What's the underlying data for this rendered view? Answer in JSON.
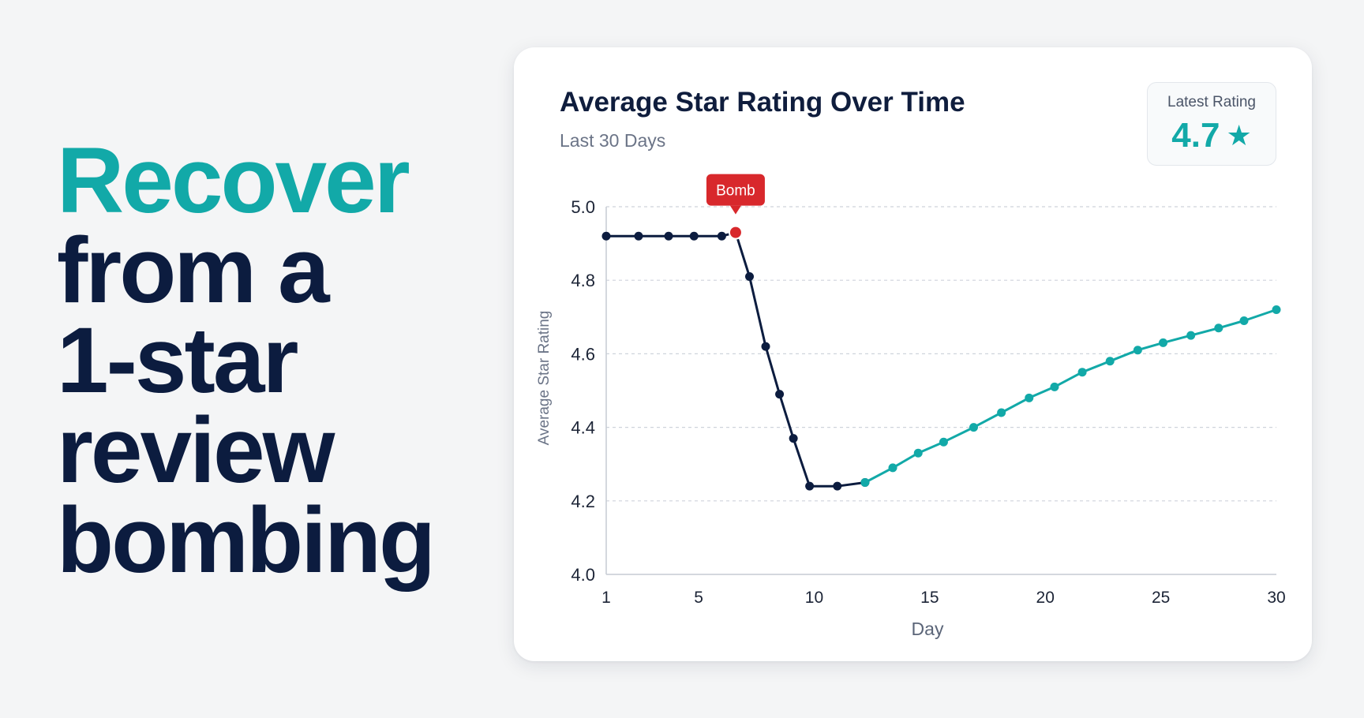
{
  "headline": {
    "line1": "Recover",
    "line2": "from a",
    "line3": "1-star",
    "line4": "review",
    "line5": "bombing"
  },
  "latest": {
    "label": "Latest Rating",
    "value": "4.7",
    "icon": "star-icon",
    "star": "★"
  },
  "colors": {
    "accent": "#12a9a8",
    "dark": "#0c1c3f",
    "bomb": "#d8282c"
  },
  "chart_data": {
    "type": "line",
    "title": "Average Star Rating Over Time",
    "subtitle": "Last 30 Days",
    "xlabel": "Day",
    "ylabel": "Average Star Rating",
    "xlim": [
      1,
      30
    ],
    "ylim": [
      4.0,
      5.0
    ],
    "x_ticks": [
      1,
      5,
      10,
      15,
      20,
      25,
      30
    ],
    "y_ticks": [
      "4.0",
      "4.2",
      "4.4",
      "4.6",
      "4.8",
      "5.0"
    ],
    "grid": true,
    "series": [
      {
        "color": "#0c1c3f",
        "points": [
          [
            1,
            4.92
          ],
          [
            2.4,
            4.92
          ],
          [
            3.7,
            4.92
          ],
          [
            4.8,
            4.92
          ],
          [
            6,
            4.92
          ],
          [
            6.6,
            4.93
          ],
          [
            7.2,
            4.81
          ],
          [
            7.9,
            4.62
          ],
          [
            8.5,
            4.49
          ],
          [
            9.1,
            4.37
          ],
          [
            9.8,
            4.24
          ],
          [
            11,
            4.24
          ],
          [
            12.2,
            4.25
          ]
        ]
      },
      {
        "color": "#12a9a8",
        "points": [
          [
            12.2,
            4.25
          ],
          [
            13.4,
            4.29
          ],
          [
            14.5,
            4.33
          ],
          [
            15.6,
            4.36
          ],
          [
            16.9,
            4.4
          ],
          [
            18.1,
            4.44
          ],
          [
            19.3,
            4.48
          ],
          [
            20.4,
            4.51
          ],
          [
            21.6,
            4.55
          ],
          [
            22.8,
            4.58
          ],
          [
            24,
            4.61
          ],
          [
            25.1,
            4.63
          ],
          [
            26.3,
            4.65
          ],
          [
            27.5,
            4.67
          ],
          [
            28.6,
            4.69
          ],
          [
            30,
            4.72
          ]
        ]
      }
    ],
    "annotations": [
      {
        "label": "Bomb",
        "x": 6.6,
        "y": 4.93,
        "color": "#d8282c"
      }
    ]
  }
}
